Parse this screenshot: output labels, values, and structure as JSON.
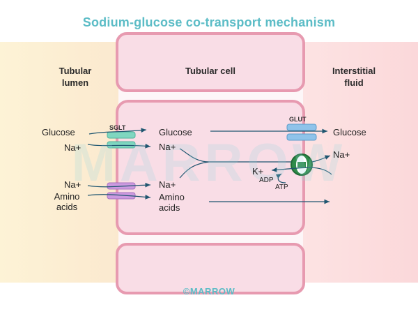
{
  "title": "Sodium-glucose co-transport mechanism",
  "regions": {
    "lumen": [
      "Tubular",
      "lumen"
    ],
    "cell": "Tubular cell",
    "interstitial": [
      "Interstitial",
      "fluid"
    ]
  },
  "transporters": {
    "sglt": "SGLT",
    "glut": "GLUT"
  },
  "lumen_labels": {
    "glucose": "Glucose",
    "na_top": "Na+",
    "na_bottom": "Na+",
    "amino": [
      "Amino",
      "acids"
    ]
  },
  "cell_labels": {
    "glucose": "Glucose",
    "na_top": "Na+",
    "na_bottom": "Na+",
    "amino": [
      "Amino",
      "acids"
    ]
  },
  "pump_labels": {
    "k": "K+",
    "adp": "ADP",
    "atp": "ATP"
  },
  "interstitial_labels": {
    "glucose": "Glucose",
    "na": "Na+"
  },
  "watermark": "MARROW",
  "footer": "©MARROW",
  "colors": {
    "title": "#5bbcc6",
    "cell_border": "#e79ab0",
    "cell_fill": "#f9dde6",
    "sglt": "#7fd6c0",
    "glut": "#8fc3ea",
    "amino_transporter": "#cc9ae0",
    "pump": "#2f8b4a",
    "arrow": "#1f5670"
  }
}
